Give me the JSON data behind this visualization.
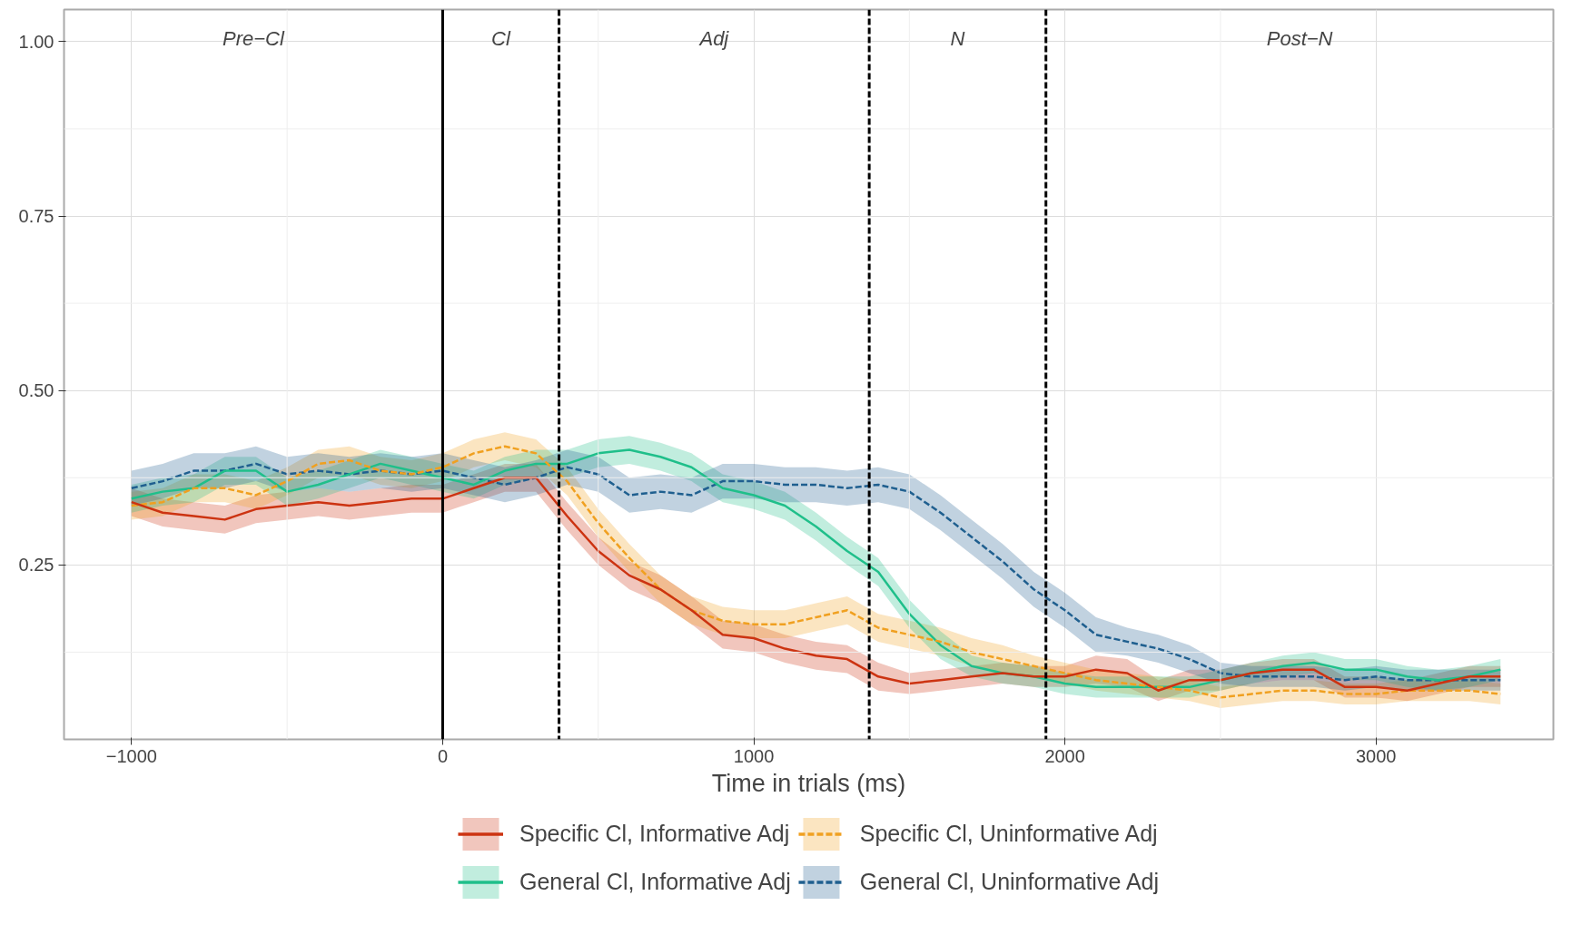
{
  "chart_data": {
    "type": "line",
    "xlabel": "Time in trials (ms)",
    "x": [
      -1000,
      -900,
      -800,
      -700,
      -600,
      -500,
      -400,
      -300,
      -200,
      -100,
      0,
      100,
      200,
      300,
      400,
      500,
      600,
      700,
      800,
      900,
      1000,
      1100,
      1200,
      1300,
      1400,
      1500,
      1600,
      1700,
      1800,
      1900,
      2000,
      2100,
      2200,
      2300,
      2400,
      2500,
      2600,
      2700,
      2800,
      2900,
      3000,
      3100,
      3200,
      3300,
      3400
    ],
    "xlim": [
      -1217,
      3570
    ],
    "ylim": [
      0.0,
      1.046
    ],
    "xticks": [
      {
        "value": -1000,
        "label": "−1000"
      },
      0,
      1000,
      2000,
      3000
    ],
    "yticks": [
      {
        "value": 0.25,
        "label": "0.25"
      },
      {
        "value": 0.5,
        "label": "0.50"
      },
      {
        "value": 0.75,
        "label": "0.75"
      },
      {
        "value": 1.0,
        "label": "1.00"
      }
    ],
    "grid": true,
    "legend": "bottom",
    "series": [
      {
        "name": "Specific Cl, Informative Adj",
        "color": "#cc3311",
        "line_style": "solid",
        "values": [
          0.34,
          0.325,
          0.32,
          0.315,
          0.33,
          0.335,
          0.34,
          0.335,
          0.34,
          0.345,
          0.345,
          0.36,
          0.375,
          0.375,
          0.32,
          0.27,
          0.235,
          0.215,
          0.185,
          0.15,
          0.145,
          0.13,
          0.12,
          0.115,
          0.09,
          0.08,
          0.085,
          0.09,
          0.095,
          0.09,
          0.09,
          0.1,
          0.095,
          0.07,
          0.085,
          0.085,
          0.095,
          0.1,
          0.1,
          0.075,
          0.075,
          0.07,
          0.08,
          0.09,
          0.09
        ],
        "lower": [
          0.32,
          0.305,
          0.3,
          0.295,
          0.31,
          0.315,
          0.32,
          0.315,
          0.32,
          0.325,
          0.325,
          0.34,
          0.355,
          0.355,
          0.3,
          0.25,
          0.215,
          0.195,
          0.165,
          0.13,
          0.125,
          0.11,
          0.1,
          0.095,
          0.07,
          0.065,
          0.07,
          0.075,
          0.08,
          0.075,
          0.075,
          0.08,
          0.075,
          0.055,
          0.07,
          0.07,
          0.08,
          0.085,
          0.085,
          0.06,
          0.06,
          0.055,
          0.065,
          0.075,
          0.075
        ],
        "upper": [
          0.36,
          0.345,
          0.34,
          0.335,
          0.35,
          0.355,
          0.36,
          0.355,
          0.36,
          0.365,
          0.365,
          0.38,
          0.395,
          0.395,
          0.34,
          0.29,
          0.255,
          0.235,
          0.205,
          0.17,
          0.165,
          0.15,
          0.14,
          0.135,
          0.11,
          0.095,
          0.1,
          0.105,
          0.11,
          0.105,
          0.105,
          0.12,
          0.115,
          0.085,
          0.1,
          0.1,
          0.11,
          0.115,
          0.115,
          0.09,
          0.09,
          0.085,
          0.095,
          0.105,
          0.105
        ]
      },
      {
        "name": "Specific Cl, Uninformative Adj",
        "color": "#f0a020",
        "line_style": "dashed",
        "values": [
          0.335,
          0.34,
          0.36,
          0.36,
          0.35,
          0.37,
          0.395,
          0.4,
          0.385,
          0.38,
          0.39,
          0.41,
          0.42,
          0.41,
          0.37,
          0.31,
          0.26,
          0.215,
          0.185,
          0.17,
          0.165,
          0.165,
          0.175,
          0.185,
          0.16,
          0.15,
          0.14,
          0.125,
          0.115,
          0.105,
          0.095,
          0.085,
          0.08,
          0.075,
          0.07,
          0.06,
          0.065,
          0.07,
          0.07,
          0.065,
          0.065,
          0.07,
          0.07,
          0.07,
          0.065
        ],
        "lower": [
          0.315,
          0.32,
          0.34,
          0.34,
          0.33,
          0.35,
          0.375,
          0.38,
          0.365,
          0.36,
          0.37,
          0.39,
          0.4,
          0.39,
          0.35,
          0.29,
          0.24,
          0.195,
          0.165,
          0.15,
          0.145,
          0.145,
          0.155,
          0.165,
          0.14,
          0.13,
          0.12,
          0.105,
          0.095,
          0.09,
          0.08,
          0.07,
          0.065,
          0.06,
          0.055,
          0.045,
          0.05,
          0.055,
          0.055,
          0.05,
          0.05,
          0.055,
          0.055,
          0.055,
          0.05
        ],
        "upper": [
          0.355,
          0.36,
          0.38,
          0.38,
          0.37,
          0.39,
          0.415,
          0.42,
          0.405,
          0.4,
          0.41,
          0.43,
          0.44,
          0.43,
          0.39,
          0.33,
          0.28,
          0.235,
          0.205,
          0.19,
          0.185,
          0.185,
          0.195,
          0.205,
          0.18,
          0.17,
          0.16,
          0.145,
          0.135,
          0.12,
          0.11,
          0.1,
          0.095,
          0.09,
          0.085,
          0.075,
          0.08,
          0.085,
          0.085,
          0.08,
          0.08,
          0.085,
          0.085,
          0.085,
          0.08
        ]
      },
      {
        "name": "General Cl, Informative Adj",
        "color": "#1fbf8a",
        "line_style": "solid",
        "values": [
          0.345,
          0.355,
          0.36,
          0.385,
          0.385,
          0.355,
          0.365,
          0.38,
          0.395,
          0.385,
          0.375,
          0.365,
          0.385,
          0.395,
          0.395,
          0.41,
          0.415,
          0.405,
          0.39,
          0.36,
          0.35,
          0.335,
          0.305,
          0.27,
          0.24,
          0.18,
          0.135,
          0.105,
          0.095,
          0.09,
          0.08,
          0.075,
          0.075,
          0.075,
          0.075,
          0.085,
          0.095,
          0.105,
          0.11,
          0.1,
          0.1,
          0.09,
          0.085,
          0.09,
          0.1
        ],
        "lower": [
          0.325,
          0.335,
          0.34,
          0.365,
          0.365,
          0.335,
          0.345,
          0.36,
          0.375,
          0.365,
          0.355,
          0.345,
          0.365,
          0.375,
          0.375,
          0.39,
          0.395,
          0.385,
          0.37,
          0.34,
          0.33,
          0.315,
          0.285,
          0.25,
          0.22,
          0.16,
          0.115,
          0.09,
          0.08,
          0.075,
          0.065,
          0.06,
          0.06,
          0.06,
          0.06,
          0.07,
          0.08,
          0.09,
          0.095,
          0.085,
          0.085,
          0.075,
          0.07,
          0.075,
          0.085
        ],
        "upper": [
          0.365,
          0.375,
          0.38,
          0.405,
          0.405,
          0.375,
          0.385,
          0.4,
          0.415,
          0.405,
          0.395,
          0.385,
          0.405,
          0.415,
          0.415,
          0.43,
          0.435,
          0.425,
          0.41,
          0.38,
          0.37,
          0.355,
          0.325,
          0.29,
          0.26,
          0.2,
          0.155,
          0.12,
          0.11,
          0.105,
          0.095,
          0.09,
          0.09,
          0.09,
          0.09,
          0.1,
          0.11,
          0.12,
          0.125,
          0.115,
          0.115,
          0.105,
          0.1,
          0.105,
          0.115
        ]
      },
      {
        "name": "General Cl, Uninformative Adj",
        "color": "#1f5f8f",
        "line_style": "dashed",
        "values": [
          0.36,
          0.37,
          0.385,
          0.385,
          0.395,
          0.38,
          0.385,
          0.38,
          0.385,
          0.38,
          0.385,
          0.375,
          0.365,
          0.375,
          0.39,
          0.38,
          0.35,
          0.355,
          0.35,
          0.37,
          0.37,
          0.365,
          0.365,
          0.36,
          0.365,
          0.355,
          0.325,
          0.29,
          0.255,
          0.215,
          0.185,
          0.15,
          0.14,
          0.13,
          0.115,
          0.095,
          0.09,
          0.09,
          0.09,
          0.085,
          0.09,
          0.085,
          0.085,
          0.085,
          0.085
        ],
        "lower": [
          0.335,
          0.345,
          0.36,
          0.36,
          0.37,
          0.355,
          0.36,
          0.355,
          0.36,
          0.355,
          0.36,
          0.35,
          0.34,
          0.35,
          0.365,
          0.355,
          0.325,
          0.33,
          0.325,
          0.345,
          0.345,
          0.34,
          0.34,
          0.335,
          0.34,
          0.33,
          0.3,
          0.265,
          0.23,
          0.19,
          0.16,
          0.125,
          0.12,
          0.11,
          0.095,
          0.08,
          0.075,
          0.075,
          0.075,
          0.07,
          0.075,
          0.07,
          0.07,
          0.07,
          0.07
        ],
        "upper": [
          0.385,
          0.395,
          0.41,
          0.41,
          0.42,
          0.405,
          0.41,
          0.405,
          0.41,
          0.405,
          0.41,
          0.4,
          0.39,
          0.4,
          0.415,
          0.405,
          0.375,
          0.38,
          0.375,
          0.395,
          0.395,
          0.39,
          0.39,
          0.385,
          0.39,
          0.38,
          0.35,
          0.315,
          0.28,
          0.24,
          0.21,
          0.175,
          0.16,
          0.15,
          0.135,
          0.11,
          0.105,
          0.105,
          0.105,
          0.1,
          0.105,
          0.1,
          0.1,
          0.1,
          0.1
        ]
      }
    ],
    "ref_lines": [
      {
        "axis": "x",
        "value": 0,
        "line_style": "solid",
        "color": "#000000"
      },
      {
        "axis": "x",
        "value": 374,
        "line_style": "dashed",
        "color": "#000000"
      },
      {
        "axis": "x",
        "value": 1371,
        "line_style": "dashed",
        "color": "#000000"
      },
      {
        "axis": "x",
        "value": 1939,
        "line_style": "dashed",
        "color": "#000000"
      }
    ],
    "annotations": [
      "Pre−Cl",
      "Cl",
      "Adj",
      "N",
      "Post−N"
    ]
  }
}
